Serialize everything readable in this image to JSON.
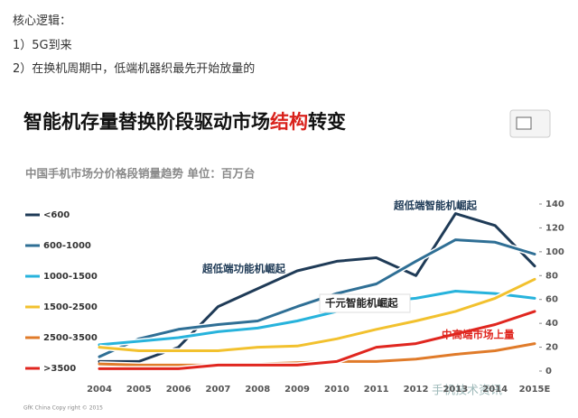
{
  "intro": [
    "核心逻辑：",
    "1）5G到来",
    "2）在换机周期中，低端机器织最先开始放量的"
  ],
  "chart_data": {
    "type": "line",
    "title": [
      "智能机存量替换阶段驱动市场",
      "结构",
      "转变"
    ],
    "subtitle": "中国手机市场分价格段销量趋势   单位：百万台",
    "categories": [
      "2004",
      "2005",
      "2006",
      "2007",
      "2008",
      "2009",
      "2010",
      "2011",
      "2012",
      "2013",
      "2014",
      "2015E"
    ],
    "series": [
      {
        "name": "<600",
        "color": "#1f3b57",
        "values": [
          8,
          8,
          20,
          54,
          69,
          84,
          92,
          95,
          80,
          132,
          122,
          88
        ]
      },
      {
        "name": "600-1000",
        "color": "#2f6f95",
        "values": [
          12,
          27,
          35,
          39,
          42,
          54,
          65,
          73,
          92,
          110,
          108,
          98
        ]
      },
      {
        "name": "1000-1500",
        "color": "#27b3dc",
        "values": [
          22,
          25,
          28,
          33,
          36,
          42,
          50,
          58,
          61,
          67,
          65,
          61
        ]
      },
      {
        "name": "1500-2500",
        "color": "#f2c12e",
        "values": [
          20,
          17,
          17,
          17,
          20,
          21,
          27,
          35,
          42,
          50,
          61,
          77
        ]
      },
      {
        "name": "2500-3500",
        "color": "#e07b2a",
        "values": [
          6,
          5,
          5,
          5,
          6,
          7,
          8,
          8,
          10,
          14,
          17,
          23
        ]
      },
      {
        "name": ">3500",
        "color": "#e0261f",
        "values": [
          2,
          2,
          2,
          5,
          5,
          5,
          8,
          20,
          23,
          31,
          39,
          50
        ]
      }
    ],
    "ylim": [
      0,
      140
    ],
    "yticks": [
      0,
      20,
      40,
      60,
      80,
      100,
      120,
      140
    ],
    "y_axis_side": "right",
    "annotations": [
      "超低端智能机崛起",
      "超低端功能机崛起",
      "千元智能机崛起",
      "中高端市场上量"
    ],
    "source": "GfK China Copy right © 2015",
    "watermark": "手机技术资讯"
  }
}
